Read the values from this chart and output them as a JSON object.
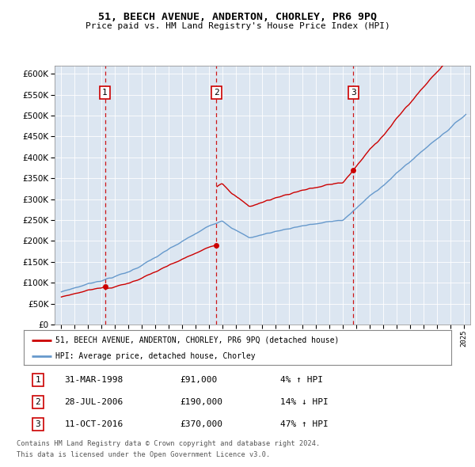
{
  "title1": "51, BEECH AVENUE, ANDERTON, CHORLEY, PR6 9PQ",
  "title2": "Price paid vs. HM Land Registry's House Price Index (HPI)",
  "bg_color": "#dce6f1",
  "transactions": [
    {
      "label": "1",
      "date_num": 1998.25,
      "price": 91000
    },
    {
      "label": "2",
      "date_num": 2006.57,
      "price": 190000
    },
    {
      "label": "3",
      "date_num": 2016.78,
      "price": 370000
    }
  ],
  "legend_red": "51, BEECH AVENUE, ANDERTON, CHORLEY, PR6 9PQ (detached house)",
  "legend_blue": "HPI: Average price, detached house, Chorley",
  "table_rows": [
    {
      "num": "1",
      "date": "31-MAR-1998",
      "price": "£91,000",
      "hpi": "4% ↑ HPI"
    },
    {
      "num": "2",
      "date": "28-JUL-2006",
      "price": "£190,000",
      "hpi": "14% ↓ HPI"
    },
    {
      "num": "3",
      "date": "11-OCT-2016",
      "price": "£370,000",
      "hpi": "47% ↑ HPI"
    }
  ],
  "footnote1": "Contains HM Land Registry data © Crown copyright and database right 2024.",
  "footnote2": "This data is licensed under the Open Government Licence v3.0.",
  "ylim": [
    0,
    620000
  ],
  "yticks": [
    0,
    50000,
    100000,
    150000,
    200000,
    250000,
    300000,
    350000,
    400000,
    450000,
    500000,
    550000,
    600000
  ],
  "xlim_start": 1994.5,
  "xlim_end": 2025.5,
  "red_color": "#cc0000",
  "blue_color": "#6699cc",
  "dashed_color": "#cc0000"
}
